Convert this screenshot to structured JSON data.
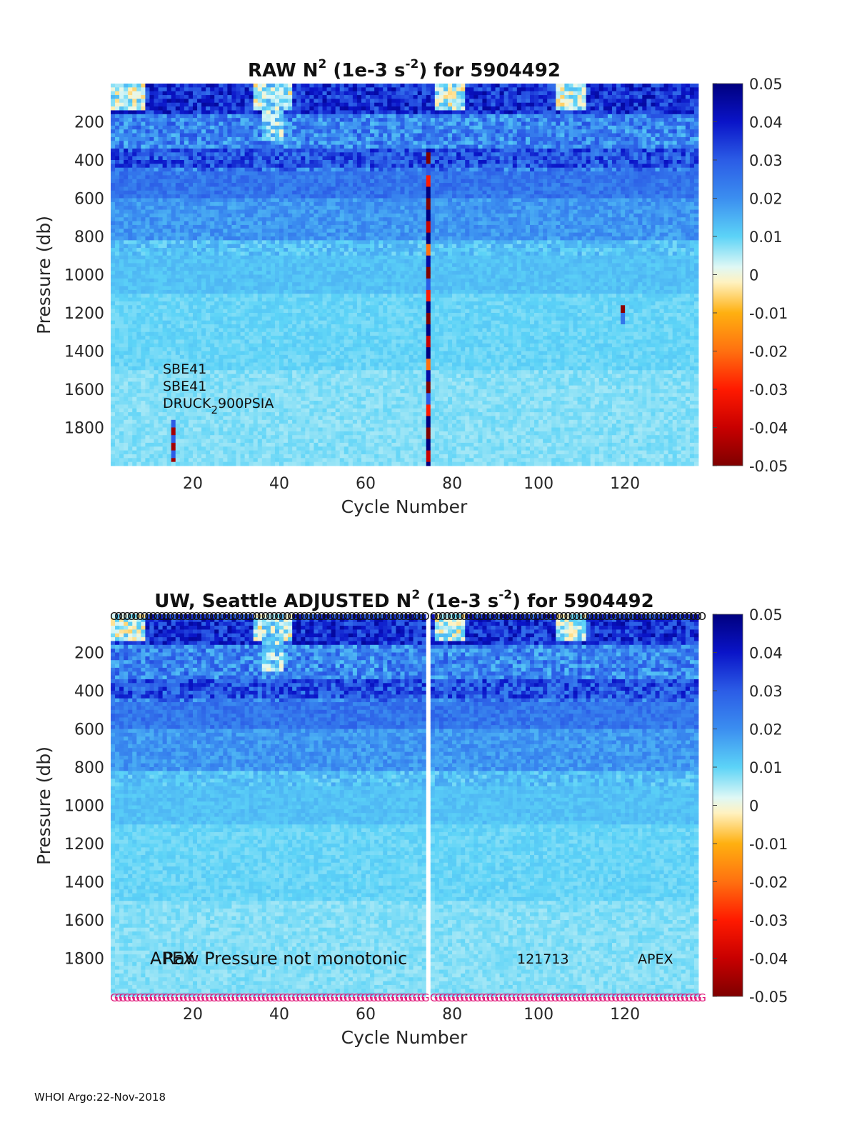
{
  "chart_data": [
    {
      "type": "heatmap",
      "title": "RAW N2 (1e-3 s-2) for 5904492",
      "title_parts": {
        "main": "RAW N",
        "sup1": "2",
        "mid": " (1e-3 s",
        "sup2": "-2",
        "end": ") for 5904492"
      },
      "xlabel": "Cycle Number",
      "ylabel": "Pressure (db)",
      "xlim": [
        1,
        137
      ],
      "ylim": [
        2000,
        0
      ],
      "xticks": [
        20,
        40,
        60,
        80,
        100,
        120
      ],
      "yticks": [
        200,
        400,
        600,
        800,
        1000,
        1200,
        1400,
        1600,
        1800
      ],
      "clim": [
        -0.05,
        0.05
      ],
      "colorbar_ticks": [
        "0.05",
        "0.04",
        "0.03",
        "0.02",
        "0.01",
        "0",
        "-0.01",
        "-0.02",
        "-0.03",
        "-0.04",
        "-0.05"
      ],
      "annotations": [
        "SBE41",
        "SBE41",
        "DRUCK"
      ],
      "annotation_druck": {
        "main": "DRUCK",
        "sub": "2",
        "end": "900PSIA"
      },
      "anomalies": [
        {
          "cycle": 74,
          "pressure_range": [
            330,
            2000
          ],
          "description": "alternating strongly negative and positive values"
        },
        {
          "cycle": 15,
          "pressure_range": [
            1750,
            1980
          ]
        },
        {
          "cycle": 119,
          "pressure_range": [
            1150,
            1250
          ]
        }
      ]
    },
    {
      "type": "heatmap",
      "title": "UW, Seattle  ADJUSTED N2 (1e-3 s-2) for 5904492",
      "title_parts": {
        "main": "UW, Seattle  ADJUSTED N",
        "sup1": "2",
        "mid": " (1e-3 s",
        "sup2": "-2",
        "end": ") for 5904492"
      },
      "xlabel": "Cycle Number",
      "ylabel": "Pressure (db)",
      "xlim": [
        1,
        137
      ],
      "ylim": [
        2000,
        0
      ],
      "xticks": [
        20,
        40,
        60,
        80,
        100,
        120
      ],
      "yticks": [
        200,
        400,
        600,
        800,
        1000,
        1200,
        1400,
        1600,
        1800
      ],
      "clim": [
        -0.05,
        0.05
      ],
      "colorbar_ticks": [
        "0.05",
        "0.04",
        "0.03",
        "0.02",
        "0.01",
        "0",
        "-0.01",
        "-0.02",
        "-0.03",
        "-0.04",
        "-0.05"
      ],
      "annotations": [
        "APEX",
        "Raw Pressure not monotonic",
        "121713",
        "APEX"
      ],
      "top_marker_glyph": "O",
      "bottom_marker_glyph": "G",
      "missing_cycles": [
        74
      ]
    }
  ],
  "footer": "WHOI Argo:22-Nov-2018"
}
